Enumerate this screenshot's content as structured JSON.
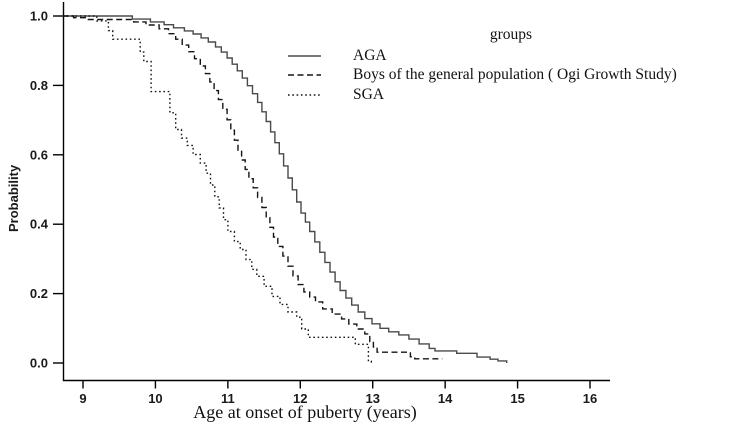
{
  "colors": {
    "background": "#ffffff",
    "axis": "#000000",
    "text": "#1a1a1a",
    "curve_solid": "#4a4a4a",
    "curve_dark": "#141414"
  },
  "chart_data": {
    "type": "line",
    "subtype": "kaplan-meier-step",
    "title": "",
    "legend_title": "groups",
    "xlabel": "Age at onset of puberty (years)",
    "ylabel": "Probability",
    "xlim": [
      8.72,
      16.3
    ],
    "ylim": [
      0.0,
      1.0
    ],
    "x_ticks": [
      9,
      10,
      11,
      12,
      13,
      14,
      15,
      16
    ],
    "y_ticks": [
      "0.0",
      "0.2",
      "0.4",
      "0.6",
      "0.8",
      "1.0"
    ],
    "grid": false,
    "legend_position": "top-right-inside",
    "series": [
      {
        "name": "AGA",
        "line_style": "solid",
        "color": "#4a4a4a",
        "points": [
          [
            8.72,
            1.0
          ],
          [
            9.68,
            0.991
          ],
          [
            9.93,
            0.983
          ],
          [
            10.12,
            0.975
          ],
          [
            10.25,
            0.966
          ],
          [
            10.4,
            0.957
          ],
          [
            10.52,
            0.948
          ],
          [
            10.63,
            0.937
          ],
          [
            10.73,
            0.925
          ],
          [
            10.83,
            0.911
          ],
          [
            10.91,
            0.896
          ],
          [
            10.99,
            0.879
          ],
          [
            11.06,
            0.861
          ],
          [
            11.13,
            0.842
          ],
          [
            11.2,
            0.821
          ],
          [
            11.27,
            0.799
          ],
          [
            11.34,
            0.776
          ],
          [
            11.41,
            0.751
          ],
          [
            11.47,
            0.724
          ],
          [
            11.53,
            0.696
          ],
          [
            11.59,
            0.666
          ],
          [
            11.65,
            0.635
          ],
          [
            11.71,
            0.603
          ],
          [
            11.77,
            0.568
          ],
          [
            11.83,
            0.533
          ],
          [
            11.89,
            0.499
          ],
          [
            11.95,
            0.464
          ],
          [
            12.01,
            0.432
          ],
          [
            12.07,
            0.406
          ],
          [
            12.13,
            0.379
          ],
          [
            12.2,
            0.349
          ],
          [
            12.27,
            0.319
          ],
          [
            12.34,
            0.29
          ],
          [
            12.41,
            0.262
          ],
          [
            12.48,
            0.234
          ],
          [
            12.55,
            0.209
          ],
          [
            12.63,
            0.187
          ],
          [
            12.71,
            0.167
          ],
          [
            12.8,
            0.147
          ],
          [
            12.89,
            0.128
          ],
          [
            12.99,
            0.113
          ],
          [
            13.1,
            0.1
          ],
          [
            13.22,
            0.09
          ],
          [
            13.36,
            0.081
          ],
          [
            13.5,
            0.069
          ],
          [
            13.64,
            0.055
          ],
          [
            13.78,
            0.042
          ],
          [
            13.86,
            0.035
          ],
          [
            14.16,
            0.028
          ],
          [
            14.44,
            0.017
          ],
          [
            14.62,
            0.011
          ],
          [
            14.73,
            0.006
          ],
          [
            14.85,
            0.0
          ]
        ]
      },
      {
        "name": "Boys of the general population ( Ogi Growth Study)",
        "line_style": "dashed",
        "color": "#141414",
        "points": [
          [
            8.72,
            1.0
          ],
          [
            8.87,
            0.995
          ],
          [
            9.06,
            0.99
          ],
          [
            9.7,
            0.983
          ],
          [
            9.87,
            0.974
          ],
          [
            10.05,
            0.963
          ],
          [
            10.18,
            0.949
          ],
          [
            10.28,
            0.933
          ],
          [
            10.37,
            0.916
          ],
          [
            10.46,
            0.897
          ],
          [
            10.54,
            0.877
          ],
          [
            10.62,
            0.856
          ],
          [
            10.69,
            0.834
          ],
          [
            10.75,
            0.81
          ],
          [
            10.81,
            0.785
          ],
          [
            10.87,
            0.759
          ],
          [
            10.93,
            0.731
          ],
          [
            10.99,
            0.701
          ],
          [
            11.04,
            0.671
          ],
          [
            11.09,
            0.642
          ],
          [
            11.14,
            0.613
          ],
          [
            11.19,
            0.585
          ],
          [
            11.24,
            0.558
          ],
          [
            11.29,
            0.531
          ],
          [
            11.35,
            0.505
          ],
          [
            11.41,
            0.477
          ],
          [
            11.47,
            0.448
          ],
          [
            11.53,
            0.419
          ],
          [
            11.58,
            0.391
          ],
          [
            11.63,
            0.363
          ],
          [
            11.69,
            0.336
          ],
          [
            11.76,
            0.308
          ],
          [
            11.83,
            0.279
          ],
          [
            11.9,
            0.251
          ],
          [
            11.97,
            0.226
          ],
          [
            12.05,
            0.205
          ],
          [
            12.13,
            0.19
          ],
          [
            12.21,
            0.176
          ],
          [
            12.31,
            0.156
          ],
          [
            12.44,
            0.141
          ],
          [
            12.57,
            0.127
          ],
          [
            12.67,
            0.112
          ],
          [
            12.78,
            0.098
          ],
          [
            12.89,
            0.084
          ],
          [
            12.96,
            0.062
          ],
          [
            13.01,
            0.046
          ],
          [
            13.06,
            0.031
          ],
          [
            13.52,
            0.018
          ],
          [
            13.58,
            0.012
          ],
          [
            13.96,
            0.012
          ]
        ]
      },
      {
        "name": "SGA",
        "line_style": "dotted",
        "color": "#141414",
        "points": [
          [
            8.72,
            1.0
          ],
          [
            9.19,
            0.986
          ],
          [
            9.35,
            0.958
          ],
          [
            9.41,
            0.933
          ],
          [
            9.79,
            0.896
          ],
          [
            9.84,
            0.869
          ],
          [
            9.94,
            0.782
          ],
          [
            10.2,
            0.721
          ],
          [
            10.28,
            0.673
          ],
          [
            10.36,
            0.648
          ],
          [
            10.44,
            0.627
          ],
          [
            10.52,
            0.601
          ],
          [
            10.62,
            0.576
          ],
          [
            10.7,
            0.547
          ],
          [
            10.76,
            0.513
          ],
          [
            10.82,
            0.479
          ],
          [
            10.88,
            0.447
          ],
          [
            10.94,
            0.413
          ],
          [
            11.0,
            0.379
          ],
          [
            11.09,
            0.35
          ],
          [
            11.17,
            0.327
          ],
          [
            11.25,
            0.298
          ],
          [
            11.33,
            0.27
          ],
          [
            11.4,
            0.25
          ],
          [
            11.5,
            0.221
          ],
          [
            11.61,
            0.192
          ],
          [
            11.72,
            0.169
          ],
          [
            11.83,
            0.147
          ],
          [
            11.95,
            0.132
          ],
          [
            12.02,
            0.098
          ],
          [
            12.11,
            0.074
          ],
          [
            12.76,
            0.054
          ],
          [
            12.94,
            0.005
          ],
          [
            12.98,
            0.0
          ]
        ]
      }
    ]
  }
}
